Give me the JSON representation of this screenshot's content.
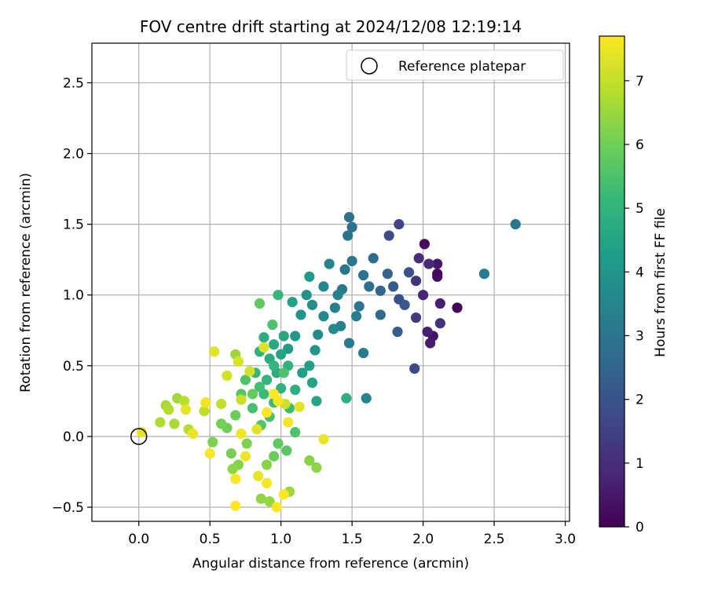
{
  "chart_data": {
    "type": "scatter",
    "title": "FOV centre drift starting at 2024/12/08 12:19:14",
    "xlabel": "Angular distance from reference (arcmin)",
    "ylabel": "Rotation from reference (arcmin)",
    "xlim": [
      -0.33,
      3.03
    ],
    "ylim": [
      -0.6,
      2.78
    ],
    "xticks": [
      0.0,
      0.5,
      1.0,
      1.5,
      2.0,
      2.5,
      3.0
    ],
    "xtick_labels": [
      "0.0",
      "0.5",
      "1.0",
      "1.5",
      "2.0",
      "2.5",
      "3.0"
    ],
    "yticks": [
      -0.5,
      0.0,
      0.5,
      1.0,
      1.5,
      2.0,
      2.5
    ],
    "ytick_labels": [
      "−0.5",
      "0.0",
      "0.5",
      "1.0",
      "1.5",
      "2.0",
      "2.5"
    ],
    "grid": true,
    "legend": {
      "position": "upper-right",
      "entries": [
        "Reference platepar"
      ]
    },
    "reference": {
      "x": 0.0,
      "y": 0.0,
      "label": "Reference platepar"
    },
    "colorbar": {
      "label": "Hours from first FF file",
      "min": 0,
      "max": 7.7,
      "ticks": [
        0,
        1,
        2,
        3,
        4,
        5,
        6,
        7
      ],
      "tick_labels": [
        "0",
        "1",
        "2",
        "3",
        "4",
        "5",
        "6",
        "7"
      ],
      "colormap": "viridis"
    },
    "colormap_stops": [
      "#440154",
      "#482878",
      "#3e4989",
      "#31688e",
      "#26828e",
      "#1f9e89",
      "#35b779",
      "#6ece58",
      "#b5de2b",
      "#fde725"
    ],
    "points": [
      [
        2.24,
        0.91,
        0.05
      ],
      [
        2.1,
        1.15,
        0.15
      ],
      [
        2.1,
        1.13,
        0.2
      ],
      [
        2.01,
        1.36,
        0.25
      ],
      [
        2.07,
        0.71,
        0.4
      ],
      [
        2.1,
        1.22,
        0.5
      ],
      [
        2.05,
        0.66,
        0.6
      ],
      [
        2.12,
        0.94,
        0.65
      ],
      [
        2.03,
        0.74,
        0.7
      ],
      [
        2.0,
        1.0,
        0.8
      ],
      [
        2.04,
        1.22,
        0.9
      ],
      [
        1.97,
        1.26,
        1.0
      ],
      [
        2.12,
        0.8,
        1.1
      ],
      [
        1.95,
        1.1,
        1.2
      ],
      [
        1.95,
        0.84,
        1.3
      ],
      [
        1.83,
        1.5,
        1.6
      ],
      [
        1.94,
        0.48,
        1.7
      ],
      [
        1.76,
        1.42,
        1.8
      ],
      [
        1.83,
        0.97,
        1.9
      ],
      [
        1.9,
        1.16,
        2.0
      ],
      [
        1.87,
        0.93,
        2.1
      ],
      [
        1.79,
        1.06,
        2.2
      ],
      [
        1.82,
        0.74,
        2.3
      ],
      [
        1.75,
        1.15,
        2.4
      ],
      [
        1.7,
        1.03,
        2.5
      ],
      [
        1.7,
        0.86,
        2.6
      ],
      [
        1.65,
        1.26,
        2.7
      ],
      [
        1.62,
        1.06,
        2.8
      ],
      [
        1.58,
        1.14,
        2.9
      ],
      [
        1.55,
        0.92,
        3.0
      ],
      [
        1.48,
        1.55,
        2.85
      ],
      [
        1.5,
        1.48,
        2.9
      ],
      [
        1.47,
        1.42,
        2.95
      ],
      [
        1.5,
        1.24,
        3.0
      ],
      [
        1.45,
        1.18,
        3.05
      ],
      [
        1.43,
        1.04,
        3.1
      ],
      [
        1.48,
        0.66,
        3.15
      ],
      [
        1.58,
        0.59,
        3.2
      ],
      [
        1.53,
        0.85,
        3.25
      ],
      [
        1.4,
        1.0,
        3.35
      ],
      [
        1.38,
        0.91,
        3.4
      ],
      [
        1.42,
        0.78,
        3.45
      ],
      [
        1.34,
        1.22,
        3.5
      ],
      [
        1.3,
        1.06,
        3.55
      ],
      [
        1.37,
        0.76,
        3.6
      ],
      [
        1.6,
        0.27,
        3.5
      ],
      [
        2.43,
        1.15,
        3.2
      ],
      [
        2.65,
        1.5,
        3.0
      ],
      [
        1.3,
        0.85,
        3.65
      ],
      [
        1.26,
        0.72,
        3.7
      ],
      [
        1.22,
        0.93,
        3.8
      ],
      [
        1.18,
        1.0,
        3.9
      ],
      [
        1.24,
        0.61,
        3.95
      ],
      [
        1.14,
        0.86,
        4.0
      ],
      [
        1.1,
        0.71,
        4.1
      ],
      [
        1.05,
        0.62,
        4.2
      ],
      [
        1.2,
        1.13,
        4.2
      ],
      [
        1.15,
        0.45,
        4.3
      ],
      [
        1.2,
        0.5,
        4.3
      ],
      [
        1.08,
        0.95,
        4.4
      ],
      [
        1.0,
        0.58,
        4.5
      ],
      [
        1.22,
        0.38,
        4.5
      ],
      [
        1.25,
        0.25,
        4.55
      ],
      [
        1.02,
        0.71,
        4.6
      ],
      [
        0.95,
        0.65,
        4.65
      ],
      [
        0.97,
        0.45,
        4.7
      ],
      [
        0.92,
        0.55,
        4.75
      ],
      [
        0.88,
        0.7,
        4.8
      ],
      [
        1.1,
        0.33,
        4.85
      ],
      [
        1.0,
        0.34,
        4.9
      ],
      [
        1.46,
        0.27,
        4.9
      ],
      [
        1.05,
        0.5,
        4.95
      ],
      [
        0.85,
        0.6,
        5.0
      ],
      [
        0.95,
        0.5,
        5.05
      ],
      [
        0.9,
        0.4,
        5.1
      ],
      [
        0.82,
        0.45,
        5.15
      ],
      [
        0.98,
        1.0,
        5.15
      ],
      [
        0.88,
        0.3,
        5.2
      ],
      [
        1.06,
        0.2,
        5.25
      ],
      [
        0.95,
        0.24,
        5.3
      ],
      [
        0.85,
        0.35,
        5.35
      ],
      [
        0.8,
        0.2,
        5.4
      ],
      [
        0.92,
        0.14,
        5.45
      ],
      [
        1.1,
        0.03,
        5.5
      ],
      [
        1.02,
        0.45,
        5.5
      ],
      [
        0.75,
        0.4,
        5.55
      ],
      [
        0.86,
        0.08,
        5.6
      ],
      [
        0.72,
        0.3,
        5.65
      ],
      [
        1.04,
        -0.1,
        5.7
      ],
      [
        0.98,
        -0.05,
        5.75
      ],
      [
        0.94,
        0.79,
        5.5
      ],
      [
        0.85,
        0.94,
        5.8
      ],
      [
        0.8,
        0.3,
        5.85
      ],
      [
        0.68,
        0.15,
        5.9
      ],
      [
        0.95,
        -0.14,
        5.9
      ],
      [
        0.62,
        0.06,
        6.0
      ],
      [
        0.58,
        0.09,
        6.05
      ],
      [
        0.65,
        -0.12,
        6.1
      ],
      [
        0.52,
        -0.04,
        6.15
      ],
      [
        0.76,
        -0.05,
        6.2
      ],
      [
        0.7,
        -0.2,
        6.25
      ],
      [
        0.9,
        -0.2,
        6.3
      ],
      [
        1.2,
        -0.17,
        6.3
      ],
      [
        1.25,
        -0.22,
        6.35
      ],
      [
        0.66,
        -0.23,
        6.4
      ],
      [
        0.86,
        -0.44,
        6.4
      ],
      [
        0.92,
        -0.46,
        6.45
      ],
      [
        1.06,
        -0.39,
        6.5
      ],
      [
        0.68,
        0.58,
        6.55
      ],
      [
        0.27,
        0.27,
        6.6
      ],
      [
        0.19,
        0.22,
        6.65
      ],
      [
        0.25,
        0.09,
        6.7
      ],
      [
        0.15,
        0.1,
        6.75
      ],
      [
        0.21,
        0.19,
        6.8
      ],
      [
        0.35,
        0.05,
        6.85
      ],
      [
        0.32,
        0.25,
        6.9
      ],
      [
        0.46,
        0.18,
        6.95
      ],
      [
        0.58,
        0.23,
        7.0
      ],
      [
        0.72,
        0.26,
        7.05
      ],
      [
        1.03,
        0.23,
        7.1
      ],
      [
        0.62,
        0.43,
        7.15
      ],
      [
        0.78,
        0.46,
        7.2
      ],
      [
        0.7,
        0.53,
        7.25
      ],
      [
        0.88,
        0.63,
        7.3
      ],
      [
        0.53,
        0.6,
        7.35
      ],
      [
        0.02,
        0.03,
        7.4
      ],
      [
        0.33,
        0.19,
        7.45
      ],
      [
        0.38,
        0.02,
        7.5
      ],
      [
        0.47,
        0.24,
        7.55
      ],
      [
        0.5,
        -0.12,
        7.6
      ],
      [
        0.68,
        -0.3,
        7.65
      ],
      [
        0.68,
        -0.49,
        7.7
      ],
      [
        0.9,
        -0.33,
        7.6
      ],
      [
        0.97,
        -0.5,
        7.7
      ],
      [
        1.02,
        -0.41,
        7.65
      ],
      [
        0.75,
        -0.14,
        7.5
      ],
      [
        0.98,
        0.25,
        7.6
      ],
      [
        0.95,
        0.3,
        7.7
      ],
      [
        1.13,
        0.21,
        7.4
      ],
      [
        1.3,
        -0.02,
        7.5
      ],
      [
        0.83,
        0.05,
        7.35
      ],
      [
        0.84,
        -0.28,
        7.45
      ],
      [
        0.72,
        0.02,
        7.55
      ],
      [
        0.9,
        0.17,
        7.68
      ],
      [
        1.05,
        0.1,
        7.62
      ]
    ]
  }
}
